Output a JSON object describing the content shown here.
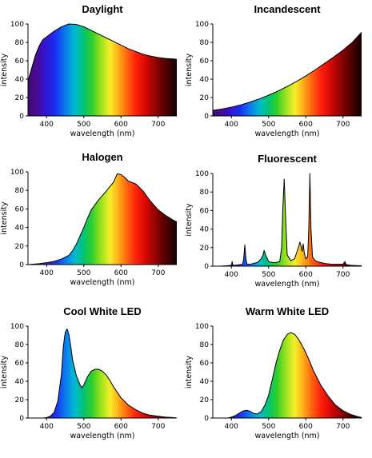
{
  "chart_data": [
    {
      "type": "area",
      "title": "Daylight",
      "xlabel": "wavelength (nm)",
      "ylabel": "intensity",
      "xlim": [
        350,
        750
      ],
      "ylim": [
        0,
        100
      ],
      "xticks": [
        400,
        500,
        600,
        700
      ],
      "yticks": [
        0,
        20,
        40,
        60,
        80,
        100
      ],
      "x": [
        350,
        360,
        370,
        380,
        390,
        400,
        420,
        440,
        460,
        480,
        500,
        520,
        540,
        560,
        580,
        600,
        620,
        640,
        660,
        680,
        700,
        720,
        740,
        750
      ],
      "y": [
        38,
        52,
        66,
        76,
        83,
        86,
        92,
        97,
        100,
        99.5,
        97,
        93,
        89,
        85,
        81,
        77,
        73,
        70,
        67,
        65,
        63.5,
        62.5,
        62,
        61.5
      ]
    },
    {
      "type": "area",
      "title": "Incandescent",
      "xlabel": "wavelength (nm)",
      "ylabel": "intensity",
      "xlim": [
        350,
        750
      ],
      "ylim": [
        0,
        100
      ],
      "xticks": [
        400,
        500,
        600,
        700
      ],
      "yticks": [
        0,
        20,
        40,
        60,
        80,
        100
      ],
      "x": [
        350,
        375,
        400,
        425,
        450,
        475,
        500,
        525,
        550,
        575,
        600,
        625,
        650,
        675,
        700,
        725,
        750
      ],
      "y": [
        6,
        7.5,
        9.5,
        12,
        15,
        18.5,
        22.5,
        27,
        32,
        37.5,
        43.5,
        50,
        57,
        64,
        71.5,
        80,
        91
      ]
    },
    {
      "type": "area",
      "title": "Halogen",
      "xlabel": "wavelength (nm)",
      "ylabel": "intensity",
      "xlim": [
        350,
        750
      ],
      "ylim": [
        0,
        100
      ],
      "xticks": [
        400,
        500,
        600,
        700
      ],
      "yticks": [
        0,
        20,
        40,
        60,
        80,
        100
      ],
      "x": [
        350,
        380,
        400,
        420,
        440,
        460,
        470,
        480,
        490,
        500,
        510,
        520,
        540,
        560,
        580,
        590,
        600,
        610,
        620,
        640,
        660,
        680,
        700,
        720,
        740,
        750
      ],
      "y": [
        0,
        1,
        2,
        3.5,
        6,
        10,
        15,
        22,
        31,
        40,
        50,
        59,
        70,
        79,
        89,
        98,
        97,
        94,
        90,
        87,
        79,
        68,
        59,
        53,
        48,
        46
      ]
    },
    {
      "type": "area",
      "title": "Fluorescent",
      "xlabel": "wavelength (nm)",
      "ylabel": "intensity",
      "xlim": [
        350,
        750
      ],
      "ylim": [
        0,
        100
      ],
      "xticks": [
        400,
        500,
        600,
        700
      ],
      "yticks": [
        0,
        20,
        40,
        60,
        80,
        100
      ],
      "x": [
        350,
        370,
        390,
        400,
        402,
        404,
        407,
        410,
        420,
        430,
        433,
        436,
        439,
        442,
        450,
        460,
        470,
        480,
        485,
        488,
        492,
        500,
        510,
        520,
        530,
        535,
        538,
        542,
        545,
        550,
        560,
        570,
        575,
        580,
        584,
        587,
        590,
        593,
        596,
        600,
        605,
        608,
        611,
        614,
        618,
        625,
        630,
        640,
        650,
        660,
        670,
        680,
        690,
        700,
        705,
        708,
        711,
        720,
        740,
        750
      ],
      "y": [
        0,
        0,
        0.5,
        1,
        5,
        1,
        1,
        1,
        1.5,
        2,
        8,
        23,
        8,
        2,
        2,
        3,
        4,
        8,
        12,
        17,
        12,
        5,
        4,
        4,
        5,
        20,
        60,
        94,
        60,
        12,
        6,
        8,
        14,
        20,
        26,
        22,
        16,
        24,
        14,
        8,
        10,
        40,
        100,
        40,
        10,
        6,
        5,
        4,
        3,
        2.5,
        2,
        2,
        2,
        2,
        5,
        2,
        1.5,
        1,
        0.5,
        0.5
      ]
    },
    {
      "type": "area",
      "title": "Cool White LED",
      "xlabel": "wavelength (nm)",
      "ylabel": "intensity",
      "xlim": [
        350,
        750
      ],
      "ylim": [
        0,
        100
      ],
      "xticks": [
        400,
        500,
        600,
        700
      ],
      "yticks": [
        0,
        20,
        40,
        60,
        80,
        100
      ],
      "x": [
        350,
        390,
        400,
        410,
        420,
        430,
        440,
        445,
        450,
        455,
        460,
        465,
        470,
        480,
        490,
        495,
        500,
        510,
        520,
        530,
        540,
        550,
        560,
        570,
        580,
        590,
        600,
        620,
        640,
        660,
        680,
        700,
        720,
        740,
        750
      ],
      "y": [
        0,
        0,
        0.5,
        2,
        6,
        18,
        48,
        78,
        93,
        97,
        91,
        78,
        63,
        46,
        36,
        33,
        36,
        45,
        51,
        53,
        53,
        51,
        47,
        41,
        34,
        28,
        22,
        14,
        9,
        5,
        3,
        2,
        1,
        0.5,
        0
      ]
    },
    {
      "type": "area",
      "title": "Warm White LED",
      "xlabel": "wavelength (nm)",
      "ylabel": "intensity",
      "xlim": [
        350,
        750
      ],
      "ylim": [
        0,
        100
      ],
      "xticks": [
        400,
        500,
        600,
        700
      ],
      "yticks": [
        0,
        20,
        40,
        60,
        80,
        100
      ],
      "x": [
        350,
        390,
        400,
        410,
        420,
        430,
        440,
        450,
        460,
        470,
        480,
        490,
        500,
        510,
        520,
        530,
        540,
        550,
        560,
        570,
        580,
        590,
        600,
        610,
        620,
        640,
        660,
        680,
        700,
        720,
        740,
        750
      ],
      "y": [
        0,
        0,
        1,
        2.5,
        5,
        7.5,
        8.5,
        7.5,
        5,
        4.5,
        7,
        14,
        25,
        42,
        60,
        74,
        85,
        91,
        93,
        91,
        86,
        79,
        71,
        62,
        52,
        36,
        24,
        14,
        8,
        4,
        1.5,
        0.5
      ]
    }
  ]
}
